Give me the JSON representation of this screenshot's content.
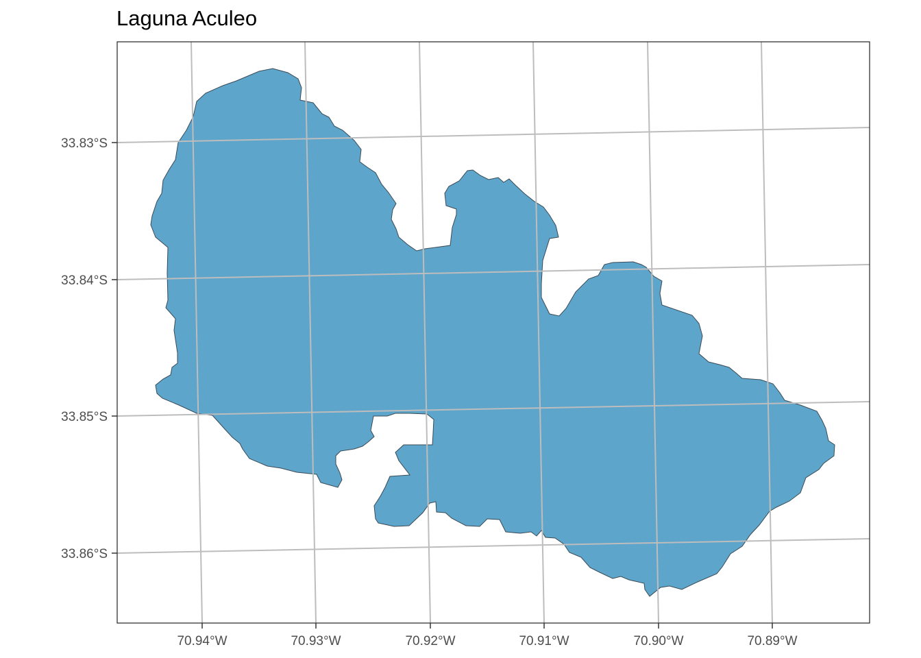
{
  "map": {
    "title": "Laguna Aculeo",
    "lake_name": "Laguna Aculeo",
    "fill_color": "#5ea5cb",
    "outline_color": "#3a4a55",
    "graticule_color": "#bdbdbd",
    "longitude_labels": [
      "70.94°W",
      "70.93°W",
      "70.92°W",
      "70.91°W",
      "70.90°W",
      "70.89°W"
    ],
    "latitude_labels": [
      "33.83°S",
      "33.84°S",
      "33.85°S",
      "33.86°S"
    ],
    "grid": true,
    "panel_border": true
  }
}
